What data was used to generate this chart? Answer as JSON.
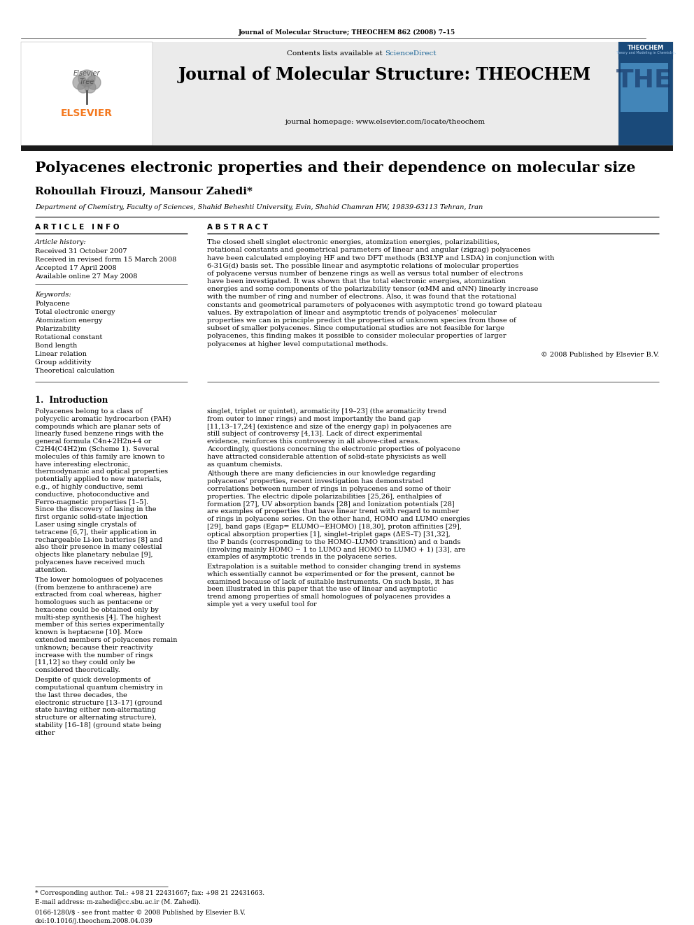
{
  "page_bg": "#ffffff",
  "header_citation": "Journal of Molecular Structure; THEOCHEM 862 (2008) 7–15",
  "journal_title": "Journal of Molecular Structure: THEOCHEM",
  "journal_homepage": "journal homepage: www.elsevier.com/locate/theochem",
  "sciencedirect_color": "#1a6496",
  "elsevier_color": "#f47920",
  "header_bg": "#ebebeb",
  "dark_bar_color": "#1a1a1a",
  "paper_title": "Polyacenes electronic properties and their dependence on molecular size",
  "authors": "Rohoullah Firouzi, Mansour Zahedi*",
  "affiliation": "Department of Chemistry, Faculty of Sciences, Shahid Beheshti University, Evin, Shahid Chamran HW, 19839-63113 Tehran, Iran",
  "article_info_header": "A R T I C L E   I N F O",
  "abstract_header": "A B S T R A C T",
  "article_history_label": "Article history:",
  "article_history": [
    "Received 31 October 2007",
    "Received in revised form 15 March 2008",
    "Accepted 17 April 2008",
    "Available online 27 May 2008"
  ],
  "keywords_label": "Keywords:",
  "keywords": [
    "Polyacene",
    "Total electronic energy",
    "Atomization energy",
    "Polarizability",
    "Rotational constant",
    "Bond length",
    "Linear relation",
    "Group additivity",
    "Theoretical calculation"
  ],
  "abstract_text": "The closed shell singlet electronic energies, atomization energies, polarizabilities, rotational constants and geometrical parameters of linear and angular (zigzag) polyacenes have been calculated employing HF and two DFT methods (B3LYP and LSDA) in conjunction with 6-31G(d) basis set. The possible linear and asymptotic relations of molecular properties of polyacene versus number of benzene rings as well as versus total number of electrons have been investigated. It was shown that the total electronic energies, atomization energies and some components of the polarizability tensor (αMM and αNN) linearly increase with the number of ring and number of electrons. Also, it was found that the rotational constants and geometrical parameters of polyacenes with asymptotic trend go toward plateau values. By extrapolation of linear and asymptotic trends of polyacenes’ molecular properties we can in principle predict the properties of unknown species from those of subset of smaller polyacenes. Since computational studies are not feasible for large polyacenes, this finding makes it possible to consider molecular properties of larger polyacenes at higher level computational methods.",
  "copyright": "© 2008 Published by Elsevier B.V.",
  "intro_header": "1.  Introduction",
  "intro_col1_p1": "Polyacenes belong to a class of polycyclic aromatic hydrocarbon (PAH) compounds which are planar sets of linearly fused benzene rings with the general formula C4n+2H2n+4 or C2H4(C4H2)m (Scheme 1). Several molecules of this family are known to have interesting electronic, thermodynamic and optical properties potentially applied to new materials, e.g., of highly conductive, semi conductive, photoconductive and Ferro-magnetic properties [1–5]. Since the discovery of lasing in the first organic solid-state injection Laser using single crystals of tetracene [6,7], their application in rechargeable Li-ion batteries [8] and also their presence in many celestial objects like planetary nebulae [9], polyacenes have received much attention.",
  "intro_col1_p2": "The lower homologues of polyacenes (from benzene to anthracene) are extracted from coal whereas, higher homologues such as pentacene or hexacene could be obtained only by multi-step synthesis [4]. The highest member of this series experimentally known is heptacene [10]. More extended members of polyacenes remain unknown; because their reactivity increase with the number of rings [11,12] so they could only be considered theoretically.",
  "intro_col1_p3": "Despite of quick developments of computational quantum chemistry in the last three decades, the electronic structure [13–17] (ground state having either non-alternating structure or alternating structure), stability [16–18] (ground state being either",
  "intro_col2_p1": "singlet, triplet or quintet), aromaticity [19–23] (the aromaticity trend from outer to inner rings) and most importantly the band gap [11,13–17,24] (existence and size of the energy gap) in polyacenes are still subject of controversy [4,13]. Lack of direct experimental evidence, reinforces this controversy in all above-cited areas. Accordingly, questions concerning the electronic properties of polyacene have attracted considerable attention of solid-state physicists as well as quantum chemists.",
  "intro_col2_p2": "Although there are many deficiencies in our knowledge regarding polyacenes’ properties, recent investigation has demonstrated correlations between number of rings in polyacenes and some of their properties. The electric dipole polarizabilities [25,26], enthalpies of formation [27], UV absorption bands [28] and Ionization potentials [28] are examples of properties that have linear trend with regard to number of rings in polyacene series. On the other hand, HOMO and LUMO energies [29], band gaps (Egap= ELUMO−EHOMO) [18,30], proton affinities [29], optical absorption properties [1], singlet–triplet gaps (ΔES–T) [31,32], the P bands (corresponding to the HOMO–LUMO transition) and α bands (involving mainly HOMO − 1 to LUMO and HOMO to LUMO + 1) [33], are examples of asymptotic trends in the polyacene series.",
  "intro_col2_p3": "Extrapolation is a suitable method to consider changing trend in systems which essentially cannot be experimented or for the present, cannot be examined because of lack of suitable instruments. On such basis, it has been illustrated in this paper that the use of linear and asymptotic trend among properties of small homologues of polyacenes provides a simple yet a very useful tool for",
  "footnote_star": "* Corresponding author. Tel.: +98 21 22431667; fax: +98 21 22431663.",
  "footnote_email": "E-mail address: m-zahedi@cc.sbu.ac.ir (M. Zahedi).",
  "doi_text": "0166-1280/$ - see front matter © 2008 Published by Elsevier B.V.",
  "doi": "doi:10.1016/j.theochem.2008.04.039"
}
